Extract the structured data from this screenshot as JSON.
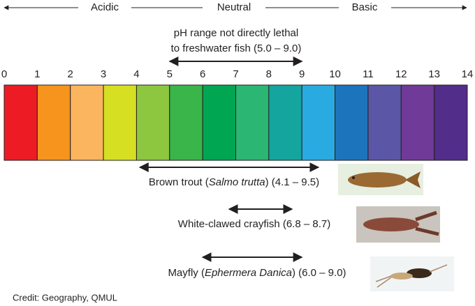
{
  "header": {
    "acidic": "Acidic",
    "neutral": "Neutral",
    "basic": "Basic"
  },
  "lethal": {
    "line1": "pH range not directly lethal",
    "line2": "to freshwater fish (5.0 – 9.0)",
    "range": [
      5.0,
      9.0
    ]
  },
  "scale": {
    "labels": [
      "0",
      "1",
      "2",
      "3",
      "4",
      "5",
      "6",
      "7",
      "8",
      "9",
      "10",
      "11",
      "12",
      "13",
      "14"
    ],
    "colors": [
      "#ed1c24",
      "#f7941d",
      "#fbb55f",
      "#d7df23",
      "#8dc63f",
      "#39b54a",
      "#00a651",
      "#2bb673",
      "#15a59f",
      "#29abe2",
      "#1c75bc",
      "#5b57a6",
      "#6f3a98",
      "#522d8a"
    ]
  },
  "species": [
    {
      "prefix": "Brown trout (",
      "italic": "Salmo trutta",
      "suffix": ") (4.1 – 9.5)",
      "range": [
        4.1,
        9.5
      ]
    },
    {
      "prefix": "White-clawed crayfish (6.8 – 8.7)",
      "range": [
        6.8,
        8.7
      ]
    },
    {
      "prefix": "Mayfly (",
      "italic": "Ephermera Danica",
      "suffix": ") (6.0 – 9.0)",
      "range": [
        6.0,
        9.0
      ]
    }
  ],
  "credit": "Credit: Geography, QMUL"
}
